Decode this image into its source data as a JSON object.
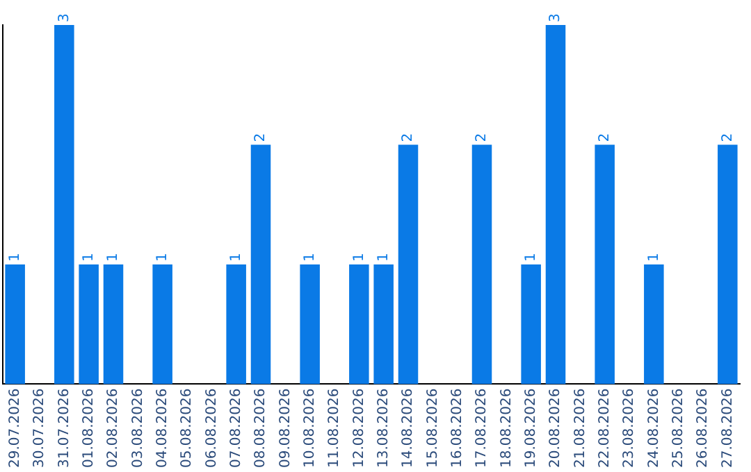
{
  "chart_data": {
    "type": "bar",
    "categories": [
      "29.07.2026",
      "30.07.2026",
      "31.07.2026",
      "01.08.2026",
      "02.08.2026",
      "03.08.2026",
      "04.08.2026",
      "05.08.2026",
      "06.08.2026",
      "07.08.2026",
      "08.08.2026",
      "09.08.2026",
      "10.08.2026",
      "11.08.2026",
      "12.08.2026",
      "13.08.2026",
      "14.08.2026",
      "15.08.2026",
      "16.08.2026",
      "17.08.2026",
      "18.08.2026",
      "19.08.2026",
      "20.08.2026",
      "21.08.2026",
      "22.08.2026",
      "23.08.2026",
      "24.08.2026",
      "25.08.2026",
      "26.08.2026",
      "27.08.2026"
    ],
    "values": [
      1,
      0,
      3,
      1,
      1,
      0,
      1,
      0,
      0,
      1,
      2,
      0,
      1,
      0,
      1,
      1,
      2,
      0,
      0,
      2,
      0,
      1,
      3,
      0,
      2,
      0,
      1,
      0,
      0,
      2
    ],
    "value_labels": [
      "1",
      null,
      "3",
      "1",
      "1",
      null,
      "1",
      null,
      null,
      "1",
      "2",
      null,
      "1",
      null,
      "1",
      "1",
      "2",
      null,
      null,
      "2",
      null,
      "1",
      "3",
      null,
      "2",
      null,
      "1",
      null,
      null,
      "2"
    ],
    "color": "#0a7ae6",
    "ylim": [
      0,
      3
    ],
    "tick_labels": "x",
    "grid": false,
    "legend": false
  }
}
